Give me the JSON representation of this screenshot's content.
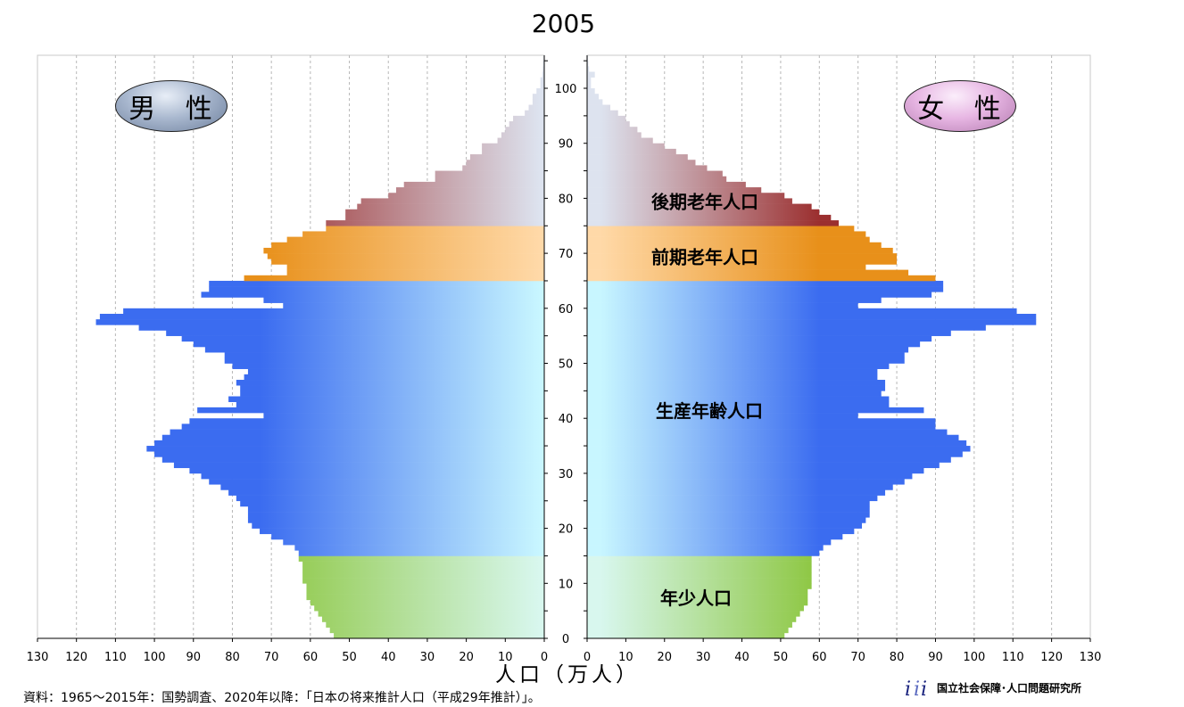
{
  "title": "2005",
  "male_label": "男 性",
  "female_label": "女 性",
  "x_axis_title": "人口（万人）",
  "source": "資料：1965～2015年：国勢調査、2020年以降：「日本の将来推計人口（平成29年推計）」。",
  "institute": "国立社会保障･人口問題研究所",
  "colors": {
    "youth": "#8cc63f",
    "working": "#3b6cf0",
    "early_elderly": "#e8901a",
    "late_elderly": "#9b2f2f",
    "light_youth": "#d8f7ee",
    "light_working": "#c8f6ff",
    "light_early": "#ffd9a8",
    "light_late": "#dde3ef"
  },
  "chart_data": {
    "type": "population_pyramid",
    "title": "2005",
    "x_label": "人口（万人）",
    "x_ticks": [
      130,
      120,
      110,
      100,
      90,
      80,
      70,
      60,
      50,
      40,
      30,
      20,
      10,
      0
    ],
    "xlim": [
      0,
      130
    ],
    "y_ticks": [
      0,
      10,
      20,
      30,
      40,
      50,
      60,
      70,
      80,
      90,
      100
    ],
    "ylim": [
      0,
      106
    ],
    "age_groups": [
      {
        "name": "年少人口",
        "ages": [
          0,
          14
        ]
      },
      {
        "name": "生産年齢人口",
        "ages": [
          15,
          64
        ]
      },
      {
        "name": "前期老年人口",
        "ages": [
          65,
          74
        ]
      },
      {
        "name": "後期老年人口",
        "ages": [
          75,
          105
        ]
      }
    ],
    "ages": [
      0,
      1,
      2,
      3,
      4,
      5,
      6,
      7,
      8,
      9,
      10,
      11,
      12,
      13,
      14,
      15,
      16,
      17,
      18,
      19,
      20,
      21,
      22,
      23,
      24,
      25,
      26,
      27,
      28,
      29,
      30,
      31,
      32,
      33,
      34,
      35,
      36,
      37,
      38,
      39,
      40,
      41,
      42,
      43,
      44,
      45,
      46,
      47,
      48,
      49,
      50,
      51,
      52,
      53,
      54,
      55,
      56,
      57,
      58,
      59,
      60,
      61,
      62,
      63,
      64,
      65,
      66,
      67,
      68,
      69,
      70,
      71,
      72,
      73,
      74,
      75,
      76,
      77,
      78,
      79,
      80,
      81,
      82,
      83,
      84,
      85,
      86,
      87,
      88,
      89,
      90,
      91,
      92,
      93,
      94,
      95,
      96,
      97,
      98,
      99,
      100,
      101,
      102,
      103,
      104,
      105
    ],
    "series": [
      {
        "name": "男性",
        "values": [
          54,
          55,
          56,
          57,
          58,
          59,
          60,
          61,
          61,
          61,
          62,
          62,
          62,
          62,
          63,
          63,
          64,
          67,
          70,
          73,
          75,
          76,
          76,
          76,
          78,
          79,
          81,
          83,
          86,
          88,
          91,
          95,
          98,
          100,
          102,
          100,
          98,
          96,
          93,
          91,
          72,
          89,
          79,
          81,
          78,
          78,
          79,
          77,
          76,
          80,
          82,
          82,
          87,
          90,
          93,
          97,
          104,
          115,
          114,
          108,
          67,
          72,
          88,
          86,
          86,
          77,
          66,
          66,
          70,
          71,
          72,
          70,
          66,
          62,
          56,
          56,
          51,
          51,
          48,
          47,
          40,
          38,
          36,
          28,
          28,
          21,
          20,
          19,
          16,
          16,
          12,
          11,
          10,
          9,
          8,
          5,
          4,
          3,
          3,
          2,
          1,
          1,
          0.5,
          0.4,
          0.3,
          0.2
        ]
      },
      {
        "name": "女性",
        "values": [
          51,
          52,
          53,
          54,
          55,
          56,
          57,
          57,
          57,
          58,
          58,
          58,
          58,
          58,
          58,
          60,
          61,
          63,
          66,
          69,
          71,
          72,
          73,
          73,
          73,
          75,
          77,
          79,
          82,
          84,
          87,
          91,
          94,
          97,
          99,
          98,
          96,
          93,
          90,
          90,
          70,
          87,
          78,
          78,
          76,
          77,
          77,
          75,
          75,
          78,
          82,
          82,
          83,
          86,
          89,
          94,
          103,
          116,
          116,
          111,
          70,
          76,
          89,
          92,
          92,
          90,
          83,
          72,
          80,
          80,
          79,
          76,
          73,
          72,
          69,
          65,
          63,
          60,
          58,
          53,
          51,
          45,
          41,
          36,
          35,
          31,
          28,
          26,
          23,
          20,
          17,
          14,
          13,
          11,
          10,
          8,
          6,
          4,
          3,
          2,
          1,
          1,
          2,
          0.5,
          0.3,
          0.2
        ]
      }
    ],
    "annotations": [
      "後期老年人口",
      "前期老年人口",
      "生産年齢人口",
      "年少人口"
    ]
  }
}
